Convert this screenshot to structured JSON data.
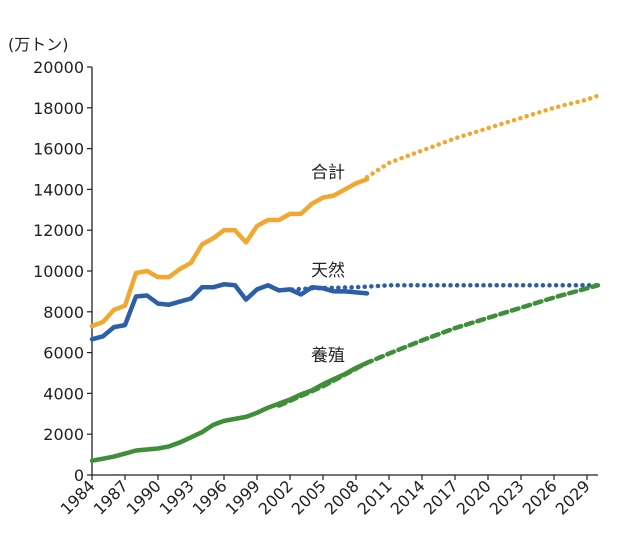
{
  "chart_data": {
    "type": "line",
    "unit_label": "(万トン)",
    "xlabel": "",
    "ylabel": "",
    "ylim": [
      0,
      20000
    ],
    "xlim": [
      1984,
      2030
    ],
    "yticks": [
      0,
      2000,
      4000,
      6000,
      8000,
      10000,
      12000,
      14000,
      16000,
      18000,
      20000
    ],
    "xticks": [
      1984,
      1987,
      1990,
      1993,
      1996,
      1999,
      2002,
      2005,
      2008,
      2011,
      2014,
      2017,
      2020,
      2023,
      2026,
      2029
    ],
    "grid": false,
    "legend": "inline-labels",
    "series": [
      {
        "name": "合計",
        "color": "#F0A830",
        "actual": [
          [
            1984,
            7300
          ],
          [
            1985,
            7500
          ],
          [
            1986,
            8100
          ],
          [
            1987,
            8300
          ],
          [
            1988,
            9900
          ],
          [
            1989,
            10000
          ],
          [
            1990,
            9700
          ],
          [
            1991,
            9700
          ],
          [
            1992,
            10100
          ],
          [
            1993,
            10400
          ],
          [
            1994,
            11300
          ],
          [
            1995,
            11600
          ],
          [
            1996,
            12000
          ],
          [
            1997,
            12000
          ],
          [
            1998,
            11400
          ],
          [
            1999,
            12200
          ],
          [
            2000,
            12500
          ],
          [
            2001,
            12500
          ],
          [
            2002,
            12800
          ],
          [
            2003,
            12800
          ],
          [
            2004,
            13300
          ],
          [
            2005,
            13600
          ],
          [
            2006,
            13700
          ],
          [
            2007,
            14000
          ],
          [
            2008,
            14300
          ],
          [
            2009,
            14500
          ]
        ],
        "projection": [
          [
            2009,
            14600
          ],
          [
            2011,
            15300
          ],
          [
            2014,
            15900
          ],
          [
            2017,
            16500
          ],
          [
            2020,
            17000
          ],
          [
            2023,
            17500
          ],
          [
            2026,
            18000
          ],
          [
            2029,
            18400
          ],
          [
            2030,
            18600
          ]
        ]
      },
      {
        "name": "天然",
        "color": "#2D5FA8",
        "actual": [
          [
            1984,
            6650
          ],
          [
            1985,
            6800
          ],
          [
            1986,
            7250
          ],
          [
            1987,
            7350
          ],
          [
            1988,
            8750
          ],
          [
            1989,
            8800
          ],
          [
            1990,
            8400
          ],
          [
            1991,
            8350
          ],
          [
            1992,
            8500
          ],
          [
            1993,
            8650
          ],
          [
            1994,
            9200
          ],
          [
            1995,
            9200
          ],
          [
            1996,
            9350
          ],
          [
            1997,
            9300
          ],
          [
            1998,
            8600
          ],
          [
            1999,
            9100
          ],
          [
            2000,
            9300
          ],
          [
            2001,
            9050
          ],
          [
            2002,
            9100
          ],
          [
            2003,
            8850
          ],
          [
            2004,
            9200
          ],
          [
            2005,
            9150
          ],
          [
            2006,
            9000
          ],
          [
            2007,
            9000
          ],
          [
            2008,
            8950
          ],
          [
            2009,
            8900
          ]
        ],
        "projection": [
          [
            2001,
            9050
          ],
          [
            2004,
            9150
          ],
          [
            2008,
            9200
          ],
          [
            2011,
            9300
          ],
          [
            2017,
            9300
          ],
          [
            2023,
            9300
          ],
          [
            2030,
            9300
          ]
        ]
      },
      {
        "name": "養殖",
        "color": "#3F8F3A",
        "actual": [
          [
            1984,
            700
          ],
          [
            1985,
            800
          ],
          [
            1986,
            900
          ],
          [
            1987,
            1050
          ],
          [
            1988,
            1200
          ],
          [
            1989,
            1250
          ],
          [
            1990,
            1300
          ],
          [
            1991,
            1400
          ],
          [
            1992,
            1600
          ],
          [
            1993,
            1850
          ],
          [
            1994,
            2100
          ],
          [
            1995,
            2450
          ],
          [
            1996,
            2650
          ],
          [
            1997,
            2750
          ],
          [
            1998,
            2850
          ],
          [
            1999,
            3050
          ],
          [
            2000,
            3300
          ],
          [
            2001,
            3500
          ],
          [
            2002,
            3700
          ],
          [
            2003,
            3950
          ],
          [
            2004,
            4150
          ],
          [
            2005,
            4450
          ],
          [
            2006,
            4700
          ],
          [
            2007,
            4950
          ],
          [
            2008,
            5250
          ],
          [
            2009,
            5500
          ]
        ],
        "projection": [
          [
            2001,
            3400
          ],
          [
            2005,
            4350
          ],
          [
            2009,
            5500
          ],
          [
            2011,
            5950
          ],
          [
            2014,
            6600
          ],
          [
            2017,
            7200
          ],
          [
            2020,
            7700
          ],
          [
            2023,
            8200
          ],
          [
            2026,
            8700
          ],
          [
            2029,
            9150
          ],
          [
            2030,
            9300
          ]
        ]
      }
    ]
  }
}
